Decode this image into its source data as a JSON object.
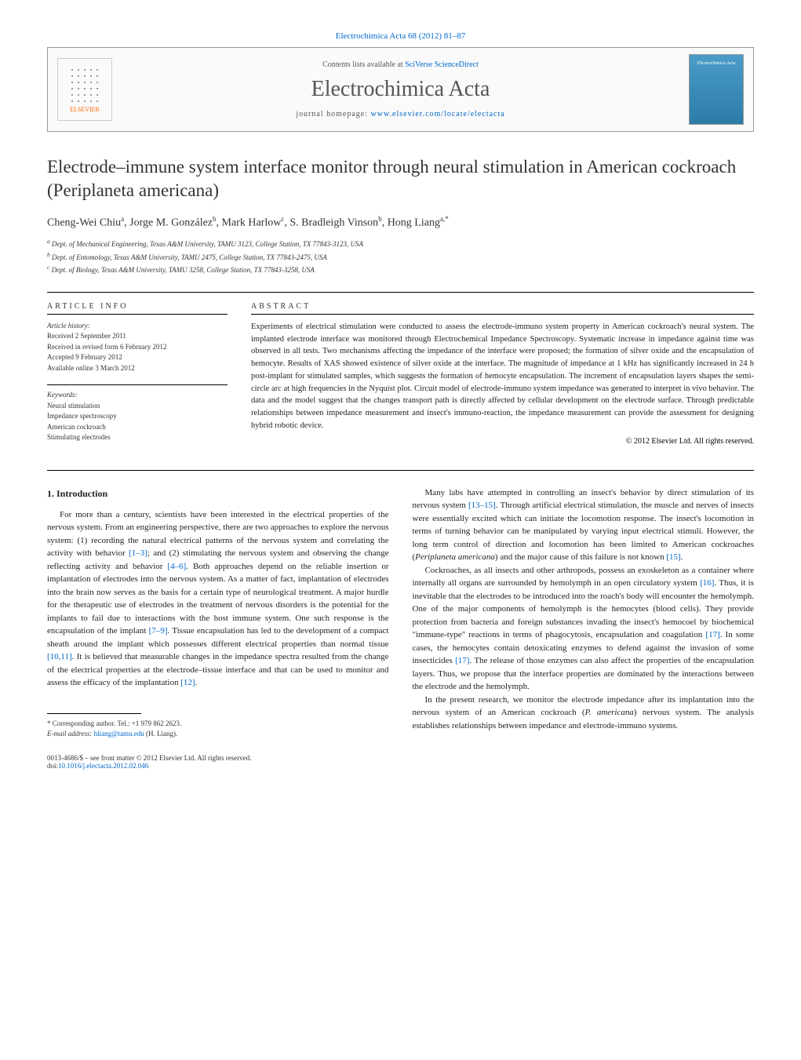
{
  "header": {
    "journal_ref": "Electrochimica Acta 68 (2012) 81–87",
    "contents_prefix": "Contents lists available at ",
    "contents_link": "SciVerse ScienceDirect",
    "journal_name": "Electrochimica Acta",
    "homepage_prefix": "journal homepage: ",
    "homepage_link": "www.elsevier.com/locate/electacta",
    "elsevier_label": "ELSEVIER",
    "cover_label": "Electrochimica Acta"
  },
  "title": "Electrode–immune system interface monitor through neural stimulation in American cockroach (Periplaneta americana)",
  "authors_html": "Cheng-Wei Chiu<sup>a</sup>, Jorge M. González<sup>b</sup>, Mark Harlow<sup>c</sup>, S. Bradleigh Vinson<sup>b</sup>, Hong Liang<sup>a,*</sup>",
  "affiliations": {
    "a": "Dept. of Mechanical Engineering, Texas A&M University, TAMU 3123, College Station, TX 77843-3123, USA",
    "b": "Dept. of Entomology, Texas A&M University, TAMU 2475, College Station, TX 77843-2475, USA",
    "c": "Dept. of Biology, Texas A&M University, TAMU 3258, College Station, TX 77843-3258, USA"
  },
  "article_info": {
    "label": "ARTICLE INFO",
    "history_heading": "Article history:",
    "history": [
      "Received 2 September 2011",
      "Received in revised form 6 February 2012",
      "Accepted 9 February 2012",
      "Available online 3 March 2012"
    ],
    "keywords_heading": "Keywords:",
    "keywords": [
      "Neural stimulation",
      "Impedance spectroscopy",
      "American cockroach",
      "Stimulating electrodes"
    ]
  },
  "abstract": {
    "label": "ABSTRACT",
    "text": "Experiments of electrical stimulation were conducted to assess the electrode-immuno system property in American cockroach's neural system. The implanted electrode interface was monitored through Electrochemical Impedance Spectroscopy. Systematic increase in impedance against time was observed in all tests. Two mechanisms affecting the impedance of the interface were proposed; the formation of silver oxide and the encapsulation of hemocyte. Results of XAS showed existence of silver oxide at the interface. The magnitude of impedance at 1 kHz has significantly increased in 24 h post-implant for stimulated samples, which suggests the formation of hemocyte encapsulation. The increment of encapsulation layers shapes the semi-circle arc at high frequencies in the Nyquist plot. Circuit model of electrode-immuno system impedance was generated to interpret in vivo behavior. The data and the model suggest that the changes transport path is directly affected by cellular development on the electrode surface. Through predictable relationships between impedance measurement and insect's immuno-reaction, the impedance measurement can provide the assessment for designing hybrid robotic device.",
    "copyright": "© 2012 Elsevier Ltd. All rights reserved."
  },
  "body": {
    "intro_heading": "1. Introduction",
    "col1_p1": "For more than a century, scientists have been interested in the electrical properties of the nervous system. From an engineering perspective, there are two approaches to explore the nervous system: (1) recording the natural electrical patterns of the nervous system and correlating the activity with behavior [1–3]; and (2) stimulating the nervous system and observing the change reflecting activity and behavior [4–6]. Both approaches depend on the reliable insertion or implantation of electrodes into the nervous system. As a matter of fact, implantation of electrodes into the brain now serves as the basis for a certain type of neurological treatment. A major hurdle for the therapeutic use of electrodes in the treatment of nervous disorders is the potential for the implants to fail due to interactions with the host immune system. One such response is the encapsulation of the implant [7–9]. Tissue encapsulation has led to the development of a compact sheath around the implant which possesses different electrical properties than normal tissue [10,11]. It is believed that measurable changes in the impedance spectra resulted from the change of the electrical properties at the electrode–tissue interface and that can be used to monitor and assess the efficacy of the implantation [12].",
    "col2_p1": "Many labs have attempted in controlling an insect's behavior by direct stimulation of its nervous system [13–15]. Through artificial electrical stimulation, the muscle and nerves of insects were essentially excited which can initiate the locomotion response. The insect's locomotion in terms of turning behavior can be manipulated by varying input electrical stimuli. However, the long term control of direction and locomotion has been limited to American cockroaches (Periplaneta americana) and the major cause of this failure is not known [15].",
    "col2_p2": "Cockroaches, as all insects and other arthropods, possess an exoskeleton as a container where internally all organs are surrounded by hemolymph in an open circulatory system [16]. Thus, it is inevitable that the electrodes to be introduced into the roach's body will encounter the hemolymph. One of the major components of hemolymph is the hemocytes (blood cells). They provide protection from bacteria and foreign substances invading the insect's hemocoel by biochemical \"immune-type\" reactions in terms of phagocytosis, encapsulation and coagulation [17]. In some cases, the hemocytes contain detoxicating enzymes to defend against the invasion of some insecticides [17]. The release of those enzymes can also affect the properties of the encapsulation layers. Thus, we propose that the interface properties are dominated by the interactions between the electrode and the hemolymph.",
    "col2_p3": "In the present research, we monitor the electrode impedance after its implantation into the nervous system of an American cockroach (P. americana) nervous system. The analysis establishes relationships between impedance and electrode-immuno systems."
  },
  "footnote": {
    "corresponding": "* Corresponding author. Tel.: +1 979 862 2623.",
    "email_label": "E-mail address: ",
    "email": "hliang@tamu.edu",
    "email_suffix": " (H. Liang)."
  },
  "footer": {
    "issn": "0013-4686/$ – see front matter © 2012 Elsevier Ltd. All rights reserved.",
    "doi_label": "doi:",
    "doi": "10.1016/j.electacta.2012.02.046"
  },
  "refs": {
    "r1_3": "[1–3]",
    "r4_6": "[4–6]",
    "r7_9": "[7–9]",
    "r10_11": "[10,11]",
    "r12": "[12]",
    "r13_15": "[13–15]",
    "r15": "[15]",
    "r16": "[16]",
    "r17": "[17]"
  },
  "colors": {
    "link": "#0066cc",
    "text": "#222222",
    "elsevier_orange": "#ff6600",
    "cover_blue": "#4a9cc7"
  }
}
